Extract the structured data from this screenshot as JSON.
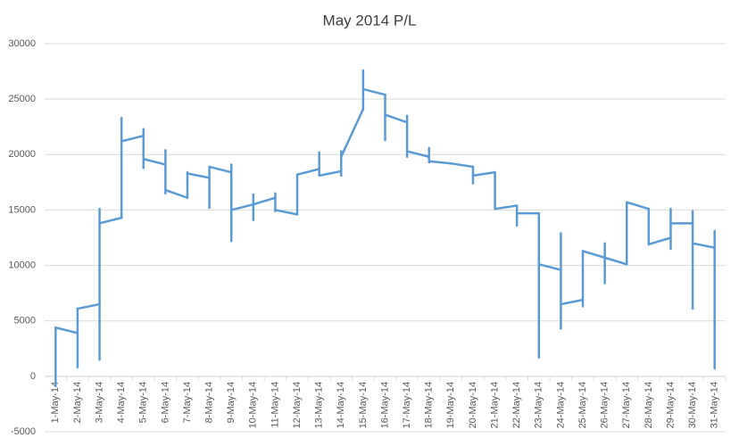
{
  "chart_data": {
    "type": "stock",
    "title": "May 2014 P/L",
    "categories": [
      "1-May-14",
      "2-May-14",
      "3-May-14",
      "4-May-14",
      "5-May-14",
      "6-May-14",
      "7-May-14",
      "8-May-14",
      "9-May-14",
      "10-May-14",
      "11-May-14",
      "12-May-14",
      "13-May-14",
      "14-May-14",
      "15-May-14",
      "16-May-14",
      "17-May-14",
      "18-May-14",
      "19-May-14",
      "20-May-14",
      "21-May-14",
      "22-May-14",
      "23-May-14",
      "24-May-14",
      "25-May-14",
      "26-May-14",
      "27-May-14",
      "28-May-14",
      "29-May-14",
      "30-May-14",
      "31-May-14"
    ],
    "open": [
      -900,
      3900,
      6500,
      14300,
      21700,
      19100,
      16100,
      17900,
      18400,
      15500,
      16100,
      14600,
      18700,
      18500,
      24100,
      25400,
      22900,
      19800,
      19200,
      18900,
      18400,
      15400,
      14700,
      9600,
      6900,
      10700,
      10100,
      15100,
      12500,
      13800,
      11600
    ],
    "high": [
      4400,
      6100,
      15100,
      23300,
      22300,
      20400,
      18400,
      18900,
      19100,
      16400,
      16500,
      18200,
      20200,
      20300,
      27600,
      25400,
      23500,
      20600,
      19200,
      18900,
      18400,
      15400,
      14700,
      12900,
      11300,
      12000,
      15700,
      15100,
      15100,
      14900,
      13100
    ],
    "low": [
      -900,
      800,
      1500,
      14300,
      18800,
      16500,
      16100,
      15200,
      12200,
      14100,
      14900,
      14600,
      18100,
      18100,
      24100,
      21300,
      19800,
      19300,
      19200,
      17400,
      15100,
      13600,
      1700,
      4300,
      6300,
      8400,
      10100,
      11900,
      11500,
      6100,
      700
    ],
    "close": [
      4400,
      6100,
      13800,
      21200,
      19600,
      16800,
      18300,
      18900,
      15000,
      15500,
      15000,
      18200,
      18100,
      19800,
      25900,
      23600,
      20300,
      19400,
      19200,
      18100,
      15100,
      14700,
      10100,
      6500,
      11300,
      10700,
      15700,
      11900,
      13800,
      12000,
      11600
    ],
    "color": "#5b9bd5",
    "ylim": [
      -5000,
      30000
    ],
    "yticks": [
      -5000,
      0,
      5000,
      10000,
      15000,
      20000,
      25000,
      30000
    ],
    "grid": true
  }
}
